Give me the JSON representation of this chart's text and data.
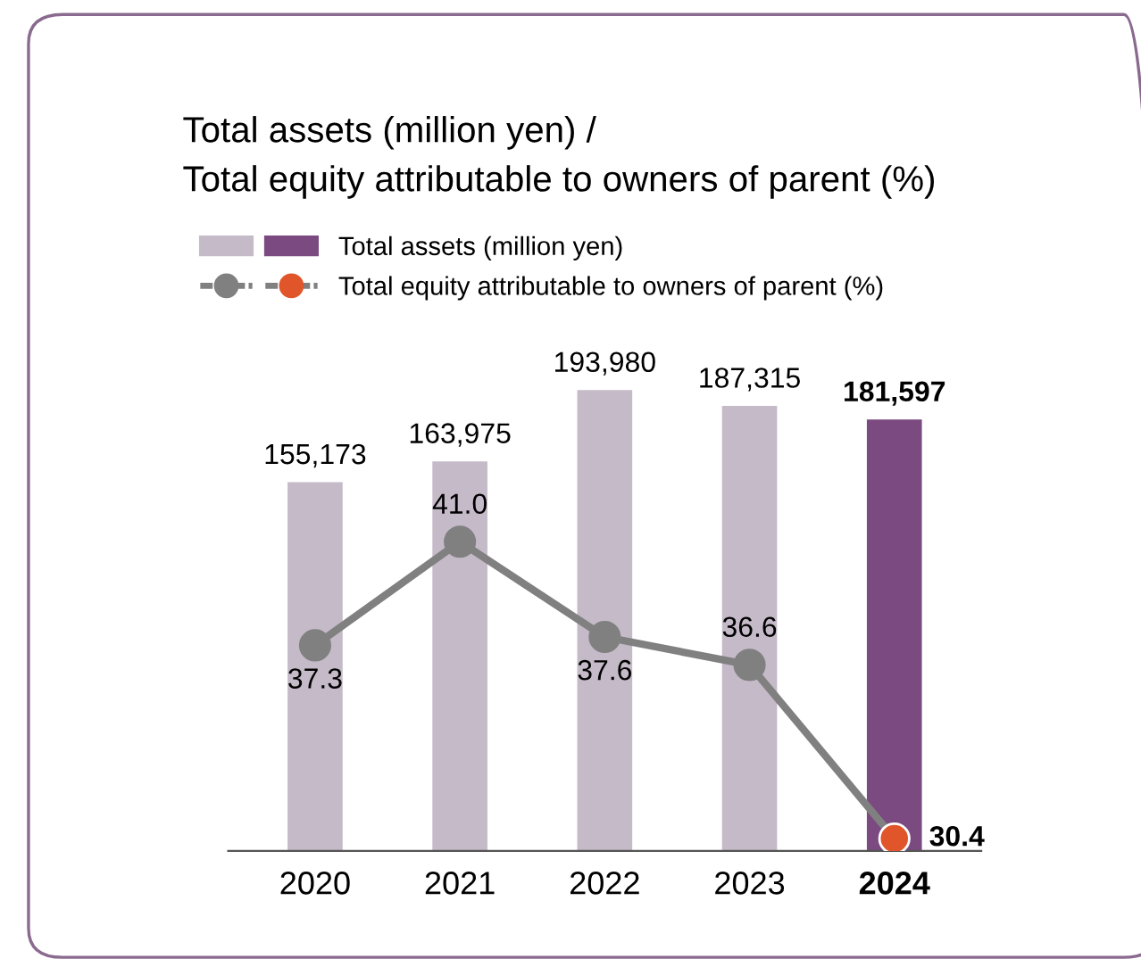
{
  "chart_data": {
    "type": "bar",
    "title": "Total assets (million yen) /\nTotal equity attributable to owners of parent (%)",
    "categories": [
      "2020",
      "2021",
      "2022",
      "2023",
      "2024"
    ],
    "series": [
      {
        "name": "Total assets (million yen)",
        "colors": [
          "#c5bac8",
          "#c5bac8",
          "#c5bac8",
          "#c5bac8",
          "#7b4a80"
        ],
        "values": [
          155173,
          163975,
          193980,
          187315,
          181597
        ],
        "value_labels": [
          "155,173",
          "163,975",
          "193,980",
          "187,315",
          "181,597"
        ]
      },
      {
        "name": "Total equity attributable to owners of parent (%)",
        "type": "line",
        "axis": "y2",
        "color": "#808080",
        "colors": [
          "#808080",
          "#808080",
          "#808080",
          "#808080",
          "#e0562a"
        ],
        "values": [
          37.3,
          41.0,
          37.6,
          36.6,
          30.4
        ],
        "value_labels": [
          "37.3",
          "41.0",
          "37.6",
          "36.6",
          "30.4"
        ]
      }
    ],
    "marker": "circle",
    "line_style": "solid",
    "legend": "top left",
    "tick_labels": "x"
  }
}
